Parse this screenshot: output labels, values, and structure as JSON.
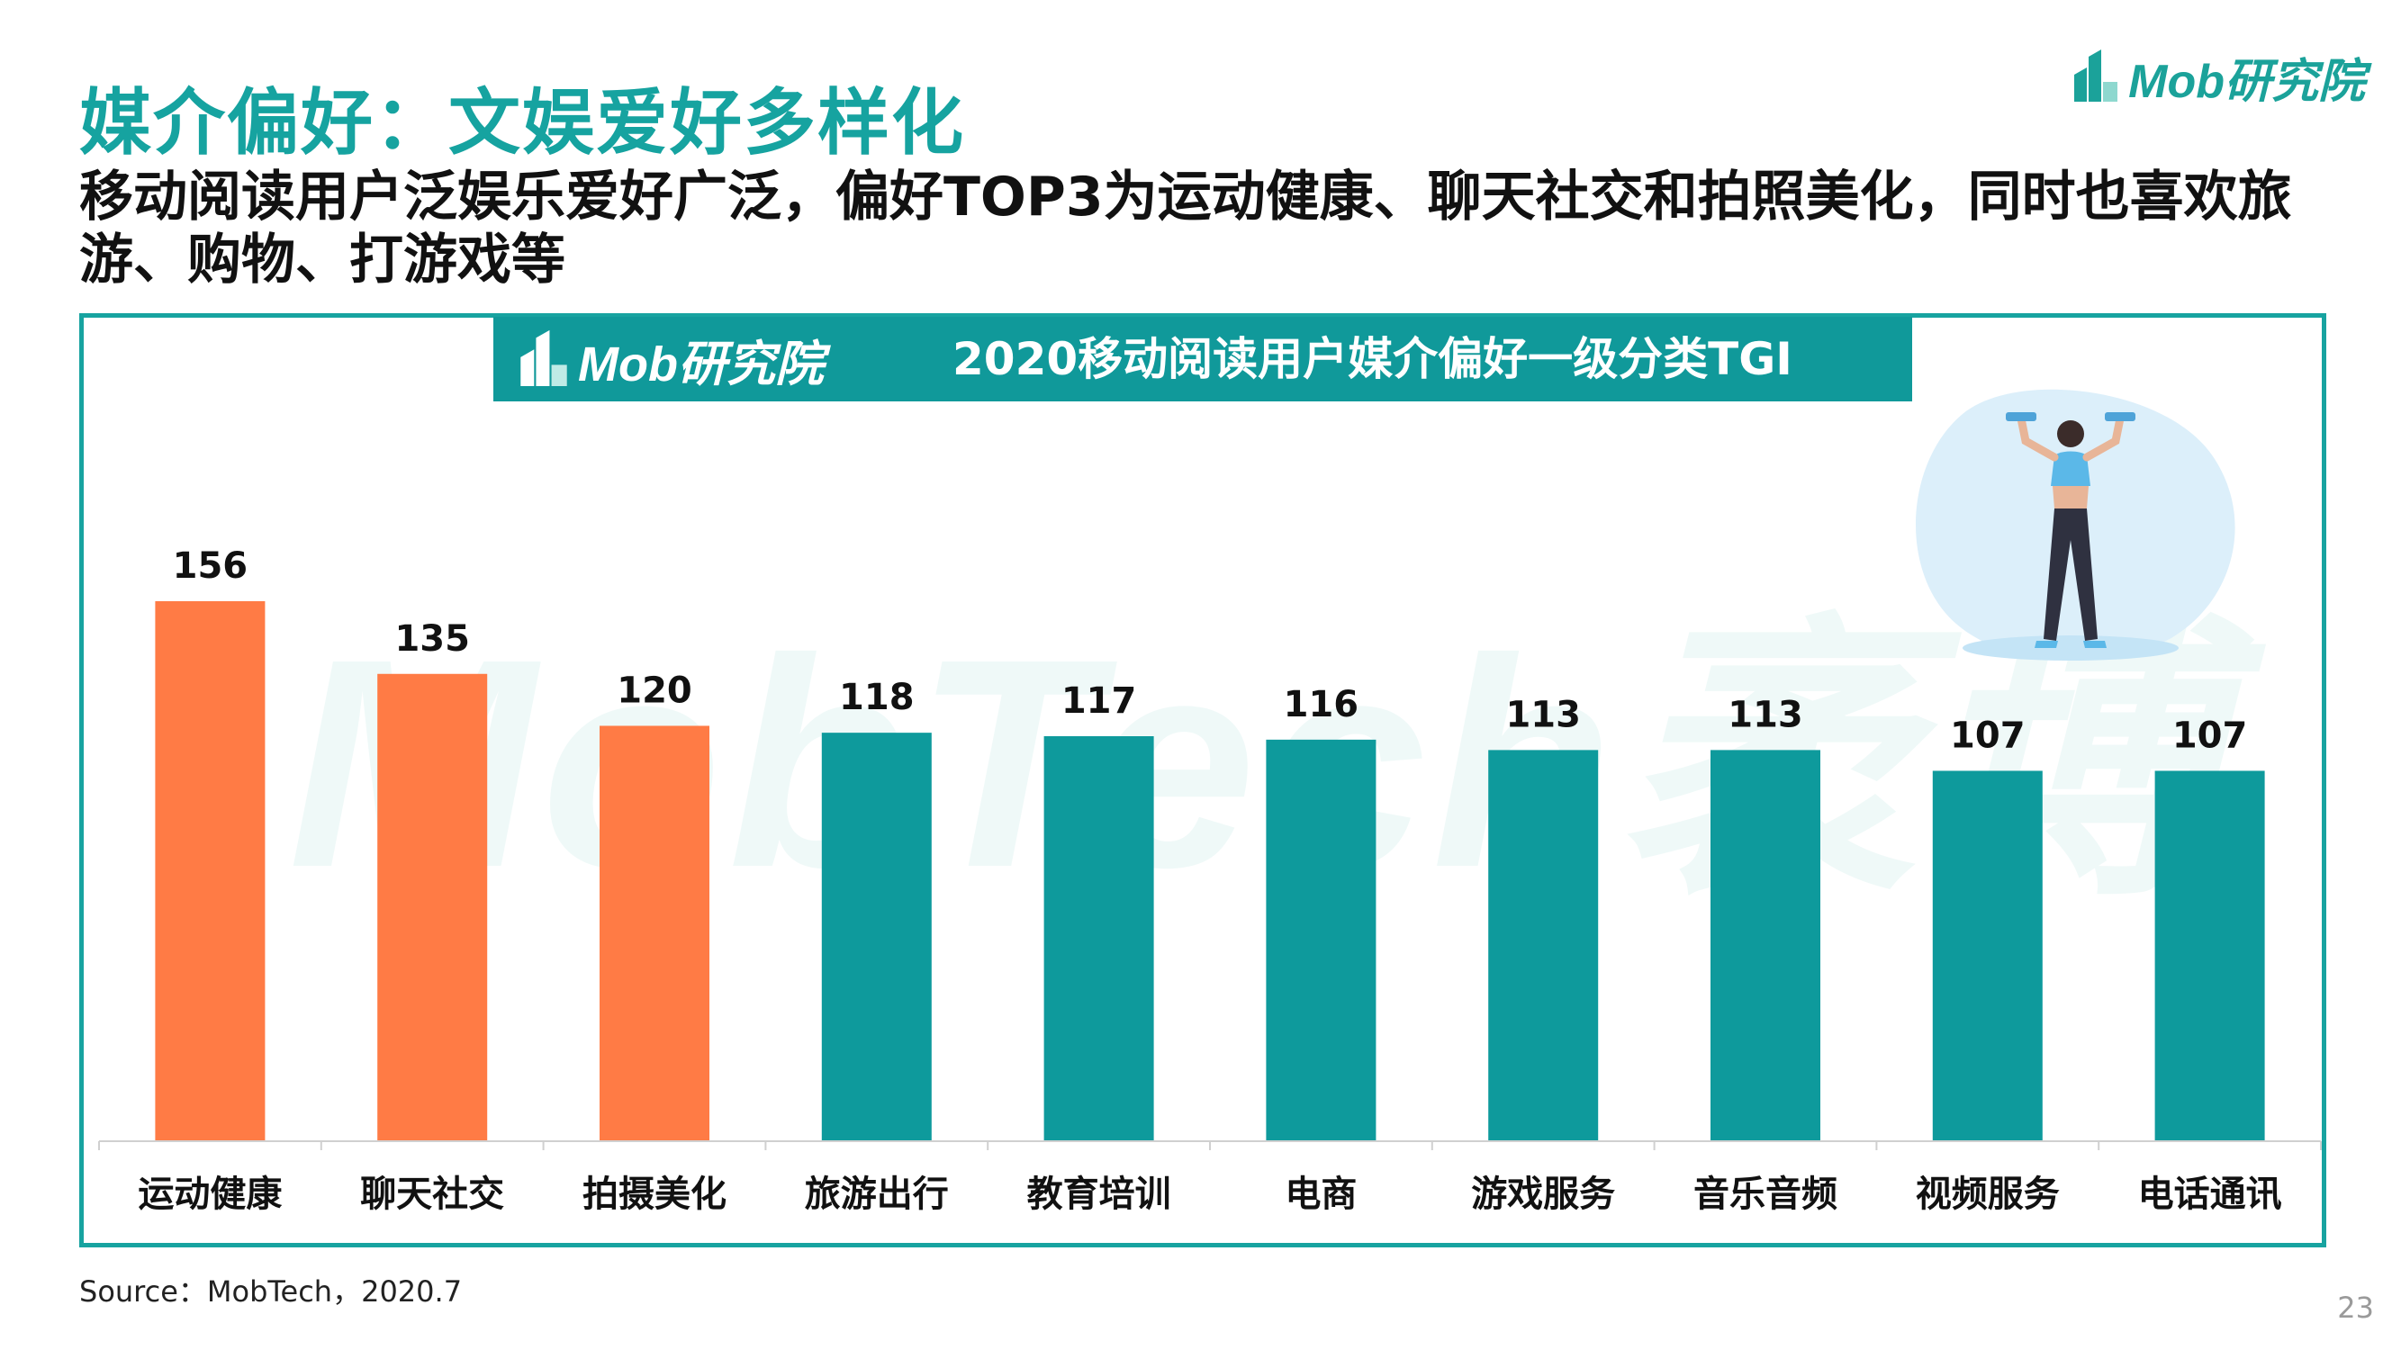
{
  "header": {
    "title": "媒介偏好：文娱爱好多样化",
    "subtitle": "移动阅读用户泛娱乐爱好广泛，偏好TOP3为运动健康、聊天社交和拍照美化，同时也喜欢旅游、购物、打游戏等",
    "brand": "Mob研究院"
  },
  "watermark": "MobTech袤博",
  "colors": {
    "accent": "#16A3A0",
    "highlight": "#FF7B45",
    "bar_default": "#0E9A9C"
  },
  "chart_data": {
    "type": "bar",
    "title": "2020移动阅读用户媒介偏好一级分类TGI",
    "categories": [
      "运动健康",
      "聊天社交",
      "拍摄美化",
      "旅游出行",
      "教育培训",
      "电商",
      "游戏服务",
      "音乐音频",
      "视频服务",
      "电话通讯"
    ],
    "values": [
      156,
      135,
      120,
      118,
      117,
      116,
      113,
      113,
      107,
      107
    ],
    "highlighted_count": 3,
    "ylim": [
      0,
      160
    ],
    "grid": false,
    "xlabel": "",
    "ylabel": ""
  },
  "footer": {
    "source": "Source：MobTech，2020.7",
    "page": "23"
  }
}
